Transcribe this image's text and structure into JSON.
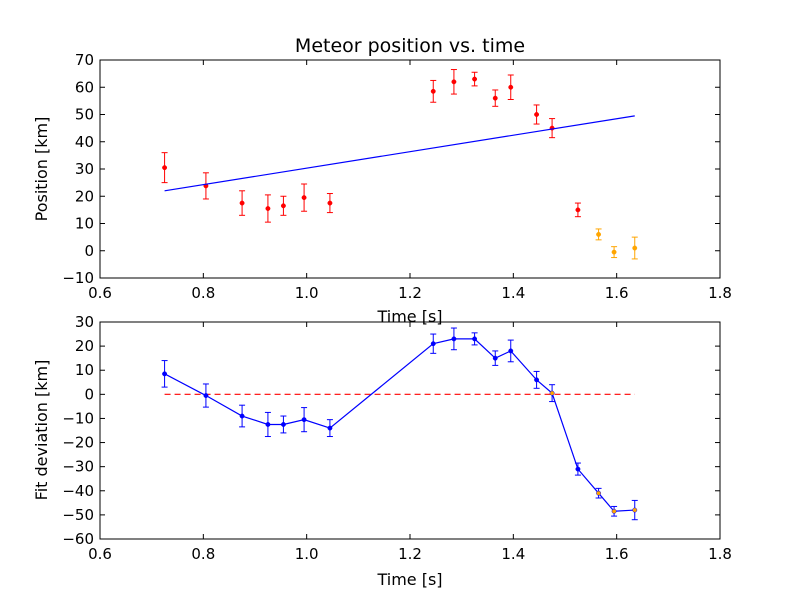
{
  "chart_data": [
    {
      "type": "scatter",
      "title": "Meteor position vs. time",
      "xlabel": "Time [s]",
      "ylabel": "Position [km]",
      "xlim": [
        0.6,
        1.8
      ],
      "ylim": [
        -10,
        70
      ],
      "xticks": [
        "0.6",
        "0.8",
        "1.0",
        "1.2",
        "1.4",
        "1.6",
        "1.8"
      ],
      "yticks": [
        "−10",
        "0",
        "10",
        "20",
        "30",
        "40",
        "50",
        "60",
        "70"
      ],
      "grid": false,
      "series": [
        {
          "kind": "errorbar-points",
          "color": "#ff0000",
          "points": [
            {
              "x": 0.725,
              "y": 30.5,
              "err": 5.5
            },
            {
              "x": 0.805,
              "y": 23.8,
              "err": 4.8
            },
            {
              "x": 0.875,
              "y": 17.5,
              "err": 4.5
            },
            {
              "x": 0.925,
              "y": 15.5,
              "err": 5.0
            },
            {
              "x": 0.955,
              "y": 16.5,
              "err": 3.5
            },
            {
              "x": 0.995,
              "y": 19.5,
              "err": 5.0
            },
            {
              "x": 1.045,
              "y": 17.5,
              "err": 3.5
            },
            {
              "x": 1.245,
              "y": 58.5,
              "err": 4.0
            },
            {
              "x": 1.285,
              "y": 62.0,
              "err": 4.5
            },
            {
              "x": 1.325,
              "y": 63.0,
              "err": 2.5
            },
            {
              "x": 1.365,
              "y": 56.0,
              "err": 3.0
            },
            {
              "x": 1.395,
              "y": 60.0,
              "err": 4.5
            },
            {
              "x": 1.445,
              "y": 50.0,
              "err": 3.5
            },
            {
              "x": 1.475,
              "y": 45.0,
              "err": 3.5
            },
            {
              "x": 1.525,
              "y": 15.0,
              "err": 2.5
            }
          ]
        },
        {
          "kind": "errorbar-points",
          "color": "#ffa500",
          "points": [
            {
              "x": 1.565,
              "y": 6.0,
              "err": 2.0
            },
            {
              "x": 1.595,
              "y": -0.5,
              "err": 2.0
            },
            {
              "x": 1.635,
              "y": 1.0,
              "err": 4.0
            }
          ]
        },
        {
          "kind": "line",
          "color": "#0000ff",
          "points": [
            {
              "x": 0.725,
              "y": 22.0
            },
            {
              "x": 1.635,
              "y": 49.5
            }
          ]
        }
      ]
    },
    {
      "type": "line",
      "title": "",
      "xlabel": "Time [s]",
      "ylabel": "Fit deviation [km]",
      "xlim": [
        0.6,
        1.8
      ],
      "ylim": [
        -60,
        30
      ],
      "xticks": [
        "0.6",
        "0.8",
        "1.0",
        "1.2",
        "1.4",
        "1.6",
        "1.8"
      ],
      "yticks": [
        "−60",
        "−50",
        "−40",
        "−30",
        "−20",
        "−10",
        "0",
        "10",
        "20",
        "30"
      ],
      "grid": false,
      "series": [
        {
          "kind": "dashed-line",
          "color": "#ff0000",
          "points": [
            {
              "x": 0.725,
              "y": 0
            },
            {
              "x": 1.635,
              "y": 0
            }
          ]
        },
        {
          "kind": "line-errorbar",
          "color": "#0000ff",
          "marker_colors": [
            "#0000ff",
            "#0000ff",
            "#0000ff",
            "#0000ff",
            "#0000ff",
            "#0000ff",
            "#0000ff",
            "#0000ff",
            "#0000ff",
            "#0000ff",
            "#0000ff",
            "#0000ff",
            "#0000ff",
            "#ffa500",
            "#0000ff",
            "#ffa500",
            "#ffa500",
            "#ffa500"
          ],
          "points": [
            {
              "x": 0.725,
              "y": 8.5,
              "err": 5.5
            },
            {
              "x": 0.805,
              "y": -0.5,
              "err": 4.8
            },
            {
              "x": 0.875,
              "y": -9.0,
              "err": 4.5
            },
            {
              "x": 0.925,
              "y": -12.5,
              "err": 5.0
            },
            {
              "x": 0.955,
              "y": -12.5,
              "err": 3.5
            },
            {
              "x": 0.995,
              "y": -10.5,
              "err": 5.0
            },
            {
              "x": 1.045,
              "y": -14.0,
              "err": 3.5
            },
            {
              "x": 1.245,
              "y": 21.0,
              "err": 4.0
            },
            {
              "x": 1.285,
              "y": 23.0,
              "err": 4.5
            },
            {
              "x": 1.325,
              "y": 23.0,
              "err": 2.5
            },
            {
              "x": 1.365,
              "y": 15.0,
              "err": 3.0
            },
            {
              "x": 1.395,
              "y": 18.0,
              "err": 4.5
            },
            {
              "x": 1.445,
              "y": 6.0,
              "err": 3.5
            },
            {
              "x": 1.475,
              "y": 0.5,
              "err": 3.5
            },
            {
              "x": 1.525,
              "y": -31.0,
              "err": 2.5
            },
            {
              "x": 1.565,
              "y": -41.0,
              "err": 2.0
            },
            {
              "x": 1.595,
              "y": -48.5,
              "err": 2.0
            },
            {
              "x": 1.635,
              "y": -48.0,
              "err": 4.0
            }
          ]
        }
      ]
    }
  ]
}
